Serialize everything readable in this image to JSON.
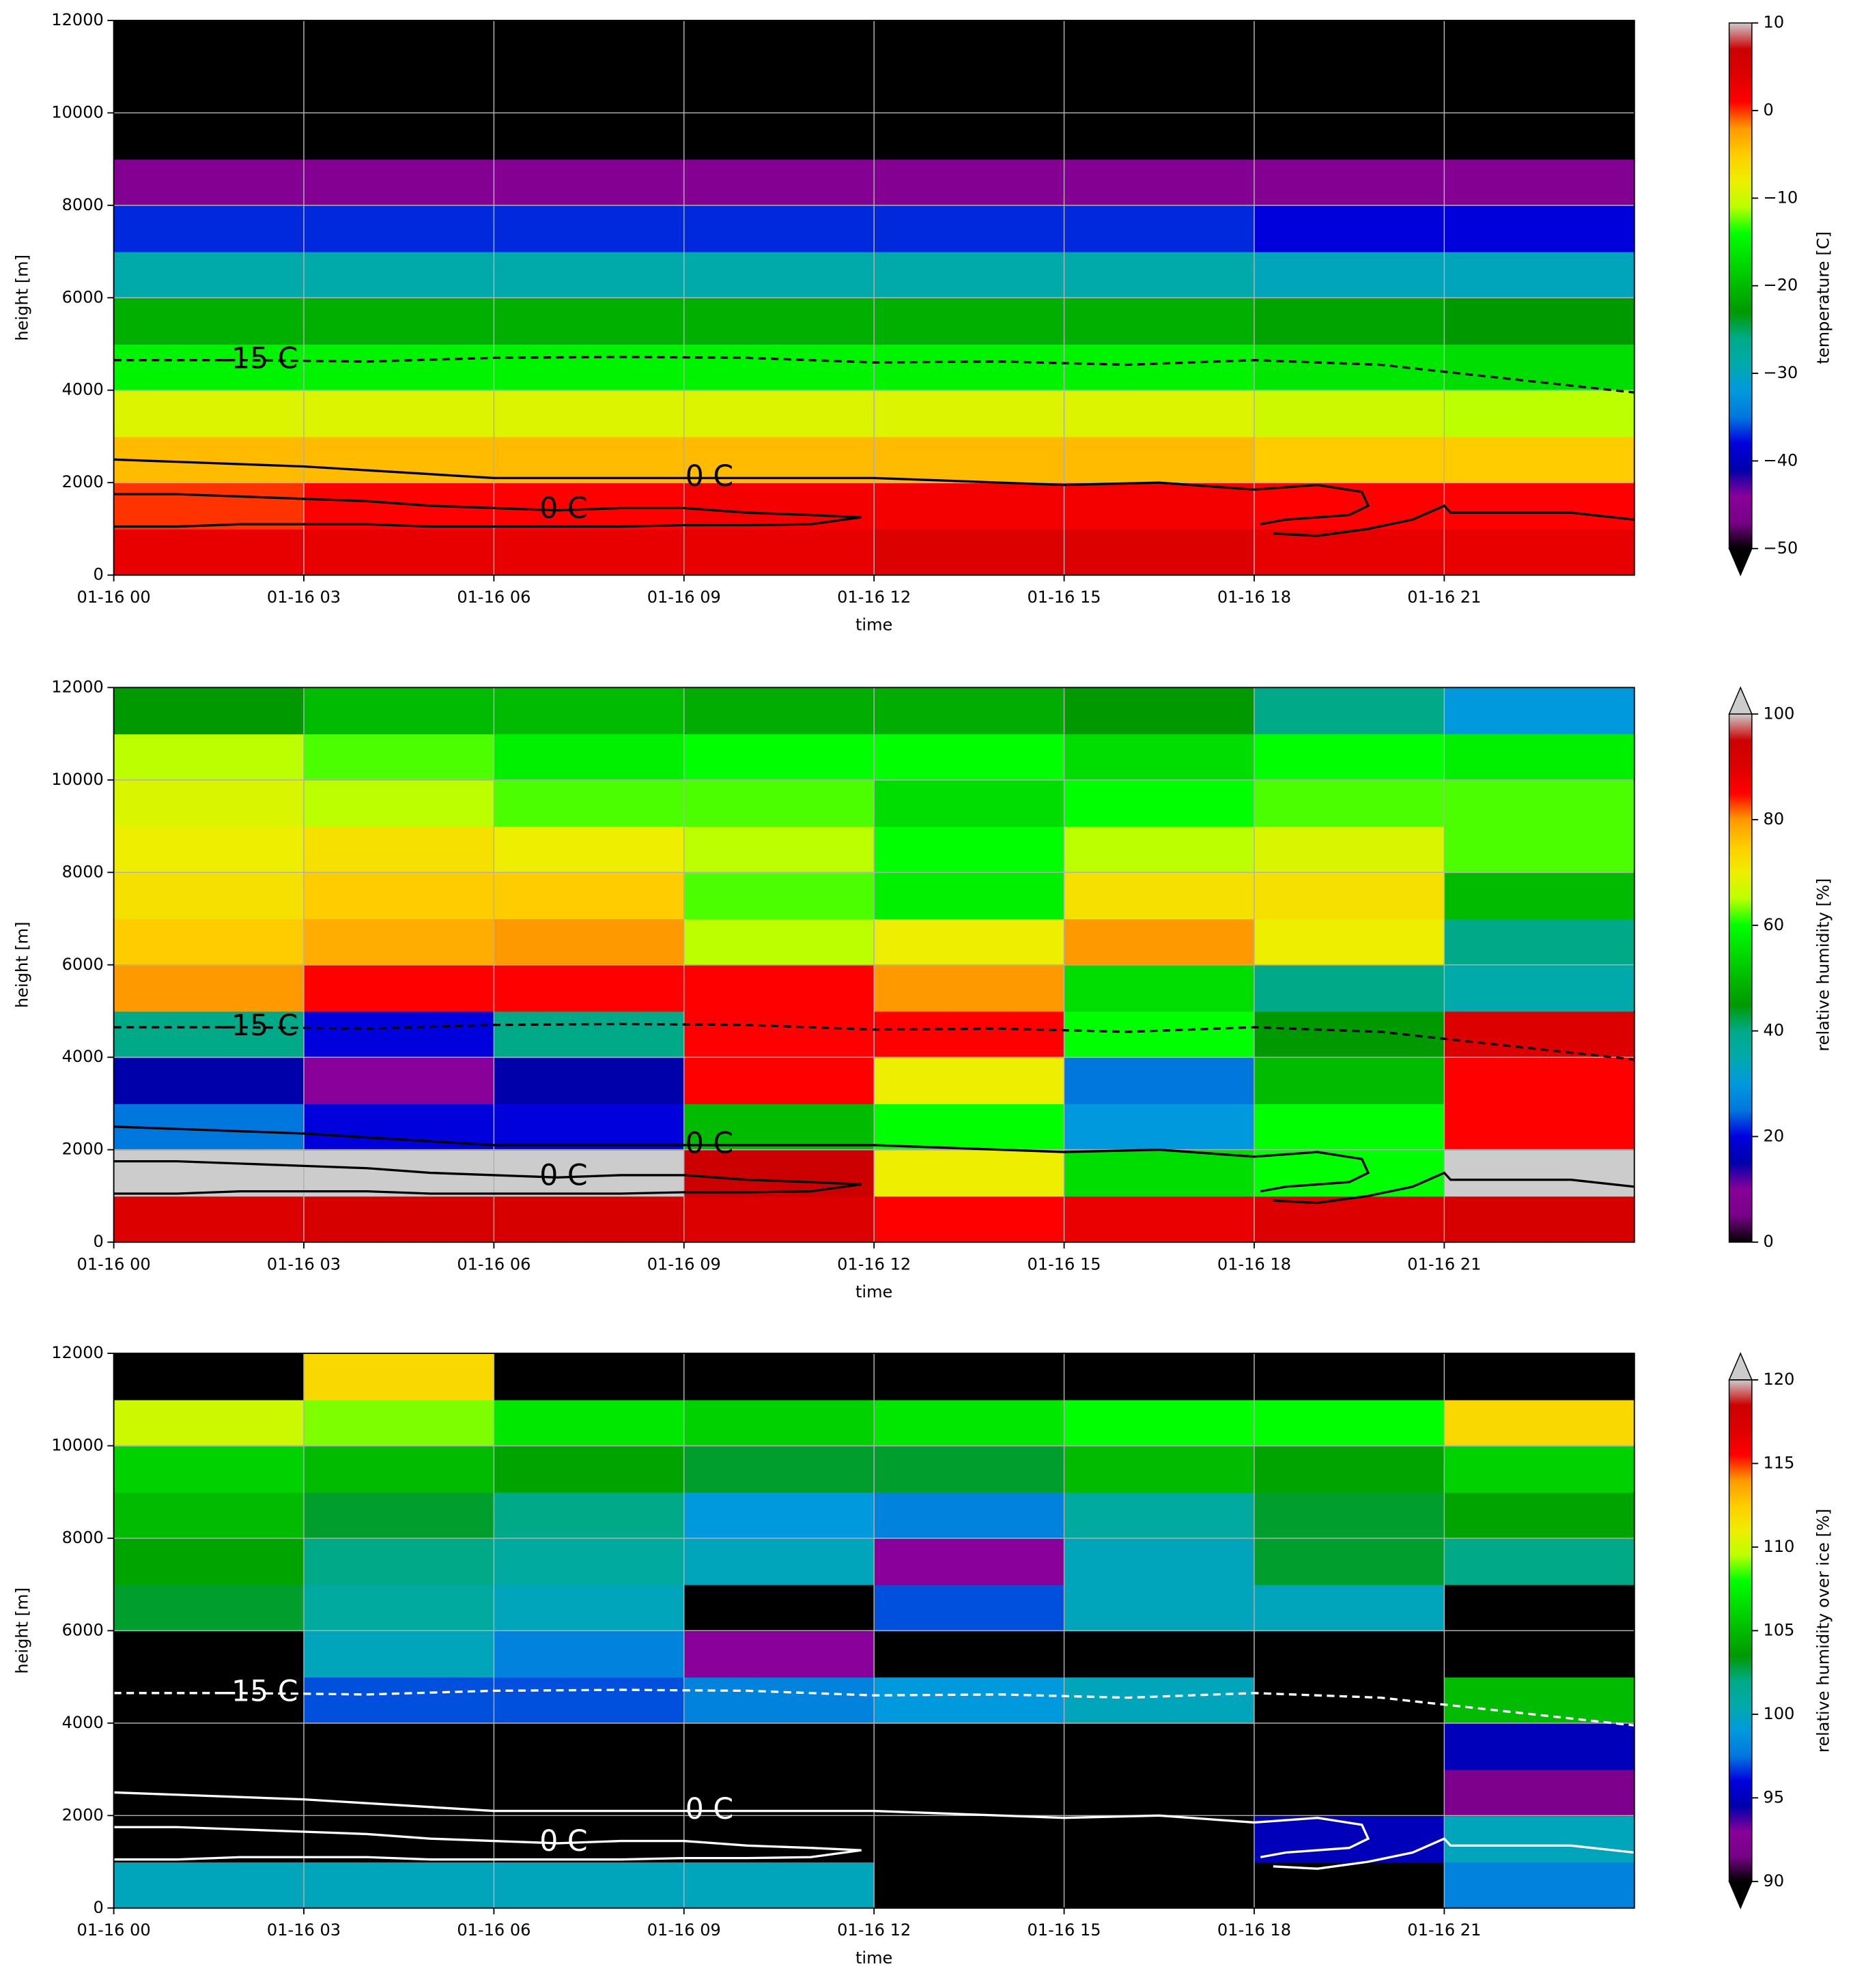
{
  "chart_data": [
    {
      "type": "heatmap",
      "xlabel": "time",
      "ylabel": "height [m]",
      "colorbar_label": "temperature [C]",
      "xlim": [
        0,
        24
      ],
      "ylim": [
        0,
        12000
      ],
      "xticks": [
        {
          "value": 0,
          "label": "01-16 00"
        },
        {
          "value": 3,
          "label": "01-16 03"
        },
        {
          "value": 6,
          "label": "01-16 06"
        },
        {
          "value": 9,
          "label": "01-16 09"
        },
        {
          "value": 12,
          "label": "01-16 12"
        },
        {
          "value": 15,
          "label": "01-16 15"
        },
        {
          "value": 18,
          "label": "01-16 18"
        },
        {
          "value": 21,
          "label": "01-16 21"
        }
      ],
      "yticks": [
        0,
        2000,
        4000,
        6000,
        8000,
        10000,
        12000
      ],
      "grid": true,
      "clim": [
        -50,
        10
      ],
      "cticks": [
        10,
        0,
        {
          "value": -10,
          "label": "−10"
        },
        {
          "value": -20,
          "label": "−20"
        },
        {
          "value": -30,
          "label": "−30"
        },
        {
          "value": -40,
          "label": "−40"
        },
        {
          "value": -50,
          "label": "−50"
        }
      ],
      "colormap": [
        "#000000",
        "#780087",
        "#880099",
        "#0000aa",
        "#0000dd",
        "#0077dd",
        "#0099dd",
        "#00aaaa",
        "#00aa88",
        "#009900",
        "#00bb00",
        "#00dd00",
        "#00ff00",
        "#bbff00",
        "#eeee00",
        "#ffcc00",
        "#ff9900",
        "#ff0000",
        "#dd0000",
        "#cc0000",
        "#cccccc"
      ],
      "under_color": "#000000",
      "contour_color": "#000000",
      "x_edges": [
        0,
        3,
        6,
        9,
        12,
        15,
        18,
        21,
        24
      ],
      "y_edges": [
        0,
        1000,
        2000,
        3000,
        4000,
        5000,
        6000,
        7000,
        8000,
        9000,
        10000,
        11000,
        12000
      ],
      "z": [
        [
          3,
          3,
          3,
          3,
          4,
          4,
          3,
          3
        ],
        [
          0,
          1,
          1,
          2,
          2,
          2,
          1,
          1
        ],
        [
          -4,
          -4,
          -4,
          -4,
          -4,
          -4,
          -5,
          -5
        ],
        [
          -9,
          -9,
          -9,
          -9,
          -9,
          -9,
          -10,
          -11
        ],
        [
          -15,
          -15,
          -15,
          -15,
          -15,
          -15,
          -16,
          -17
        ],
        [
          -21,
          -21,
          -21,
          -21,
          -21,
          -21,
          -22,
          -23
        ],
        [
          -29,
          -29,
          -29,
          -29,
          -29,
          -29,
          -30,
          -30
        ],
        [
          -37,
          -37,
          -37,
          -37,
          -37,
          -37,
          -38,
          -38
        ],
        [
          -45,
          -45,
          -45,
          -45,
          -45,
          -45,
          -45,
          -45
        ],
        [
          -60,
          -60,
          -60,
          -60,
          -60,
          -60,
          -60,
          -60
        ],
        [
          -60,
          -60,
          -60,
          -60,
          -60,
          -60,
          -60,
          -60
        ],
        [
          -60,
          -60,
          -60,
          -60,
          -60,
          -60,
          -60,
          -60
        ]
      ],
      "contours": [
        {
          "label": "-15 C",
          "style": "dashed",
          "x": [
            0,
            2,
            4,
            6,
            8,
            10,
            12,
            14,
            16,
            18,
            20,
            22,
            24
          ],
          "y": [
            4650,
            4650,
            4620,
            4700,
            4720,
            4700,
            4600,
            4620,
            4550,
            4650,
            4550,
            4250,
            3950
          ]
        },
        {
          "label": "0 C",
          "style": "solid",
          "x": [
            0,
            3,
            6,
            9,
            12,
            15,
            16.5,
            18,
            19,
            19.7,
            19.8,
            19.5,
            18.5,
            18.1
          ],
          "y": [
            2500,
            2350,
            2100,
            2100,
            2100,
            1950,
            2000,
            1850,
            1950,
            1800,
            1500,
            1300,
            1200,
            1100
          ]
        },
        {
          "label": "0 C",
          "style": "solid",
          "x": [
            0,
            1,
            2,
            3,
            4,
            5,
            6,
            7,
            8,
            9,
            10,
            11,
            11.8,
            11,
            10,
            9,
            8,
            7,
            6,
            5,
            4,
            3,
            2,
            1,
            0
          ],
          "y": [
            1750,
            1750,
            1700,
            1650,
            1600,
            1500,
            1450,
            1400,
            1450,
            1450,
            1350,
            1300,
            1250,
            1100,
            1080,
            1080,
            1050,
            1050,
            1050,
            1050,
            1100,
            1100,
            1100,
            1050,
            1050
          ]
        },
        {
          "style": "solid",
          "x": [
            18.3,
            19,
            19.8,
            20.5,
            21,
            21.1,
            22,
            23,
            24
          ],
          "y": [
            900,
            850,
            1000,
            1200,
            1500,
            1350,
            1350,
            1350,
            1200
          ]
        }
      ]
    },
    {
      "type": "heatmap",
      "xlabel": "time",
      "ylabel": "height [m]",
      "colorbar_label": "relative humidity [%]",
      "xlim": [
        0,
        24
      ],
      "ylim": [
        0,
        12000
      ],
      "xticks": [
        {
          "value": 0,
          "label": "01-16 00"
        },
        {
          "value": 3,
          "label": "01-16 03"
        },
        {
          "value": 6,
          "label": "01-16 06"
        },
        {
          "value": 9,
          "label": "01-16 09"
        },
        {
          "value": 12,
          "label": "01-16 12"
        },
        {
          "value": 15,
          "label": "01-16 15"
        },
        {
          "value": 18,
          "label": "01-16 18"
        },
        {
          "value": 21,
          "label": "01-16 21"
        }
      ],
      "yticks": [
        0,
        2000,
        4000,
        6000,
        8000,
        10000,
        12000
      ],
      "grid": true,
      "clim": [
        0,
        100
      ],
      "cticks": [
        100,
        80,
        60,
        40,
        20,
        0
      ],
      "colormap": [
        "#000000",
        "#780087",
        "#880099",
        "#0000aa",
        "#0000dd",
        "#0077dd",
        "#0099dd",
        "#00aaaa",
        "#00aa88",
        "#009900",
        "#00bb00",
        "#00dd00",
        "#00ff00",
        "#bbff00",
        "#eeee00",
        "#ffcc00",
        "#ff9900",
        "#ff0000",
        "#dd0000",
        "#cc0000",
        "#cccccc"
      ],
      "over_color": "#cccccc",
      "contour_color": "#000000",
      "x_edges": [
        0,
        3,
        6,
        9,
        12,
        15,
        18,
        21,
        24
      ],
      "y_edges": [
        0,
        1000,
        2000,
        3000,
        4000,
        5000,
        6000,
        7000,
        8000,
        9000,
        10000,
        11000,
        12000
      ],
      "z": [
        [
          90,
          92,
          92,
          90,
          85,
          88,
          90,
          92
        ],
        [
          100,
          100,
          100,
          95,
          70,
          55,
          60,
          100
        ],
        [
          25,
          20,
          20,
          50,
          60,
          30,
          60,
          85
        ],
        [
          15,
          10,
          15,
          85,
          70,
          25,
          50,
          85
        ],
        [
          40,
          20,
          40,
          85,
          85,
          60,
          45,
          90
        ],
        [
          80,
          85,
          85,
          85,
          80,
          55,
          40,
          35
        ],
        [
          75,
          78,
          80,
          65,
          70,
          80,
          70,
          40
        ],
        [
          72,
          75,
          75,
          62,
          58,
          72,
          72,
          50
        ],
        [
          70,
          72,
          70,
          65,
          60,
          65,
          68,
          62
        ],
        [
          68,
          65,
          62,
          62,
          55,
          60,
          62,
          62
        ],
        [
          65,
          62,
          58,
          60,
          60,
          55,
          60,
          58
        ],
        [
          45,
          50,
          50,
          48,
          48,
          45,
          40,
          30
        ]
      ],
      "contours": [
        {
          "label": "-15 C",
          "style": "dashed",
          "x": [
            0,
            2,
            4,
            6,
            8,
            10,
            12,
            14,
            16,
            18,
            20,
            22,
            24
          ],
          "y": [
            4650,
            4650,
            4620,
            4700,
            4720,
            4700,
            4600,
            4620,
            4550,
            4650,
            4550,
            4250,
            3950
          ]
        },
        {
          "label": "0 C",
          "style": "solid",
          "x": [
            0,
            3,
            6,
            9,
            12,
            15,
            16.5,
            18,
            19,
            19.7,
            19.8,
            19.5,
            18.5,
            18.1
          ],
          "y": [
            2500,
            2350,
            2100,
            2100,
            2100,
            1950,
            2000,
            1850,
            1950,
            1800,
            1500,
            1300,
            1200,
            1100
          ]
        },
        {
          "label": "0 C",
          "style": "solid",
          "x": [
            0,
            1,
            2,
            3,
            4,
            5,
            6,
            7,
            8,
            9,
            10,
            11,
            11.8,
            11,
            10,
            9,
            8,
            7,
            6,
            5,
            4,
            3,
            2,
            1,
            0
          ],
          "y": [
            1750,
            1750,
            1700,
            1650,
            1600,
            1500,
            1450,
            1400,
            1450,
            1450,
            1350,
            1300,
            1250,
            1100,
            1080,
            1080,
            1050,
            1050,
            1050,
            1050,
            1100,
            1100,
            1100,
            1050,
            1050
          ]
        },
        {
          "style": "solid",
          "x": [
            18.3,
            19,
            19.8,
            20.5,
            21,
            21.1,
            22,
            23,
            24
          ],
          "y": [
            900,
            850,
            1000,
            1200,
            1500,
            1350,
            1350,
            1350,
            1200
          ]
        }
      ]
    },
    {
      "type": "heatmap",
      "xlabel": "time",
      "ylabel": "height [m]",
      "colorbar_label": "relative humidity over ice [%]",
      "xlim": [
        0,
        24
      ],
      "ylim": [
        0,
        12000
      ],
      "xticks": [
        {
          "value": 0,
          "label": "01-16 00"
        },
        {
          "value": 3,
          "label": "01-16 03"
        },
        {
          "value": 6,
          "label": "01-16 06"
        },
        {
          "value": 9,
          "label": "01-16 09"
        },
        {
          "value": 12,
          "label": "01-16 12"
        },
        {
          "value": 15,
          "label": "01-16 15"
        },
        {
          "value": 18,
          "label": "01-16 18"
        },
        {
          "value": 21,
          "label": "01-16 21"
        }
      ],
      "yticks": [
        0,
        2000,
        4000,
        6000,
        8000,
        10000,
        12000
      ],
      "grid": true,
      "clim": [
        90,
        120
      ],
      "cticks": [
        120,
        115,
        110,
        105,
        100,
        95,
        90
      ],
      "colormap": [
        "#000000",
        "#780087",
        "#880099",
        "#0000aa",
        "#0000dd",
        "#0077dd",
        "#0099dd",
        "#00aaaa",
        "#00aa88",
        "#009900",
        "#00bb00",
        "#00dd00",
        "#00ff00",
        "#bbff00",
        "#eeee00",
        "#ffcc00",
        "#ff9900",
        "#ff0000",
        "#dd0000",
        "#cc0000",
        "#cccccc"
      ],
      "under_color": "#000000",
      "over_color": "#cccccc",
      "contour_color": "#ffffff",
      "x_edges": [
        0,
        3,
        6,
        9,
        12,
        15,
        18,
        21,
        24
      ],
      "y_edges": [
        0,
        1000,
        2000,
        3000,
        4000,
        5000,
        6000,
        7000,
        8000,
        9000,
        10000,
        11000,
        12000
      ],
      "z": [
        [
          100,
          100,
          100,
          100,
          80,
          80,
          80,
          98
        ],
        [
          85,
          80,
          80,
          80,
          80,
          80,
          95,
          100
        ],
        [
          80,
          80,
          80,
          80,
          80,
          80,
          80,
          92
        ],
        [
          80,
          80,
          80,
          80,
          80,
          80,
          80,
          95
        ],
        [
          80,
          97,
          97,
          98,
          99,
          100,
          80,
          105
        ],
        [
          80,
          100,
          98,
          93,
          80,
          85,
          80,
          80
        ],
        [
          103,
          101,
          100,
          80,
          97,
          100,
          100,
          80
        ],
        [
          104,
          102,
          101,
          100,
          93,
          100,
          103,
          102
        ],
        [
          105,
          103,
          102,
          99,
          98,
          101,
          103,
          104
        ],
        [
          106,
          105,
          104,
          103,
          103,
          105,
          104,
          106
        ],
        [
          110,
          109,
          107,
          106,
          107,
          108,
          108,
          112
        ],
        [
          80,
          112,
          80,
          80,
          80,
          80,
          80,
          80
        ]
      ],
      "contours": [
        {
          "label": "-15 C",
          "style": "dashed",
          "x": [
            0,
            2,
            4,
            6,
            8,
            10,
            12,
            14,
            16,
            18,
            20,
            22,
            24
          ],
          "y": [
            4650,
            4650,
            4620,
            4700,
            4720,
            4700,
            4600,
            4620,
            4550,
            4650,
            4550,
            4250,
            3950
          ]
        },
        {
          "label": "0 C",
          "style": "solid",
          "x": [
            0,
            3,
            6,
            9,
            12,
            15,
            16.5,
            18,
            19,
            19.7,
            19.8,
            19.5,
            18.5,
            18.1
          ],
          "y": [
            2500,
            2350,
            2100,
            2100,
            2100,
            1950,
            2000,
            1850,
            1950,
            1800,
            1500,
            1300,
            1200,
            1100
          ]
        },
        {
          "label": "0 C",
          "style": "solid",
          "x": [
            0,
            1,
            2,
            3,
            4,
            5,
            6,
            7,
            8,
            9,
            10,
            11,
            11.8,
            11,
            10,
            9,
            8,
            7,
            6,
            5,
            4,
            3,
            2,
            1,
            0
          ],
          "y": [
            1750,
            1750,
            1700,
            1650,
            1600,
            1500,
            1450,
            1400,
            1450,
            1450,
            1350,
            1300,
            1250,
            1100,
            1080,
            1080,
            1050,
            1050,
            1050,
            1050,
            1100,
            1100,
            1100,
            1050,
            1050
          ]
        },
        {
          "style": "solid",
          "x": [
            18.3,
            19,
            19.8,
            20.5,
            21,
            21.1,
            22,
            23,
            24
          ],
          "y": [
            900,
            850,
            1000,
            1200,
            1500,
            1350,
            1350,
            1350,
            1200
          ]
        }
      ]
    }
  ]
}
